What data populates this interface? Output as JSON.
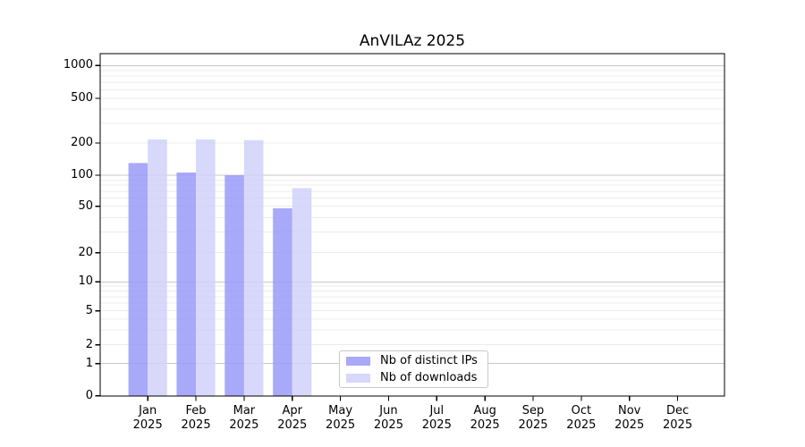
{
  "chart_data": {
    "type": "bar",
    "title": "AnVILAz 2025",
    "categories": [
      "Jan",
      "Feb",
      "Mar",
      "Apr",
      "May",
      "Jun",
      "Jul",
      "Aug",
      "Sep",
      "Oct",
      "Nov",
      "Dec"
    ],
    "x_tick_year": "2025",
    "series": [
      {
        "name": "Nb of distinct IPs",
        "color": "#9a9af8",
        "values": [
          130,
          106,
          100,
          48,
          0,
          0,
          0,
          0,
          0,
          0,
          0,
          0
        ]
      },
      {
        "name": "Nb of downloads",
        "color": "#d1d1fa",
        "values": [
          215,
          215,
          212,
          75,
          0,
          0,
          0,
          0,
          0,
          0,
          0,
          0
        ]
      }
    ],
    "yscale": "symlog",
    "yticks": [
      0,
      1,
      2,
      5,
      10,
      20,
      50,
      100,
      200,
      500,
      1000
    ],
    "ylim": [
      0,
      1400
    ],
    "grid": "horizontal major+minor",
    "legend_position": "inside lower-center-left",
    "colors": {
      "major_grid": "#c8c8c8",
      "minor_grid": "#ececec",
      "axis": "#000000",
      "background": "#ffffff"
    }
  }
}
